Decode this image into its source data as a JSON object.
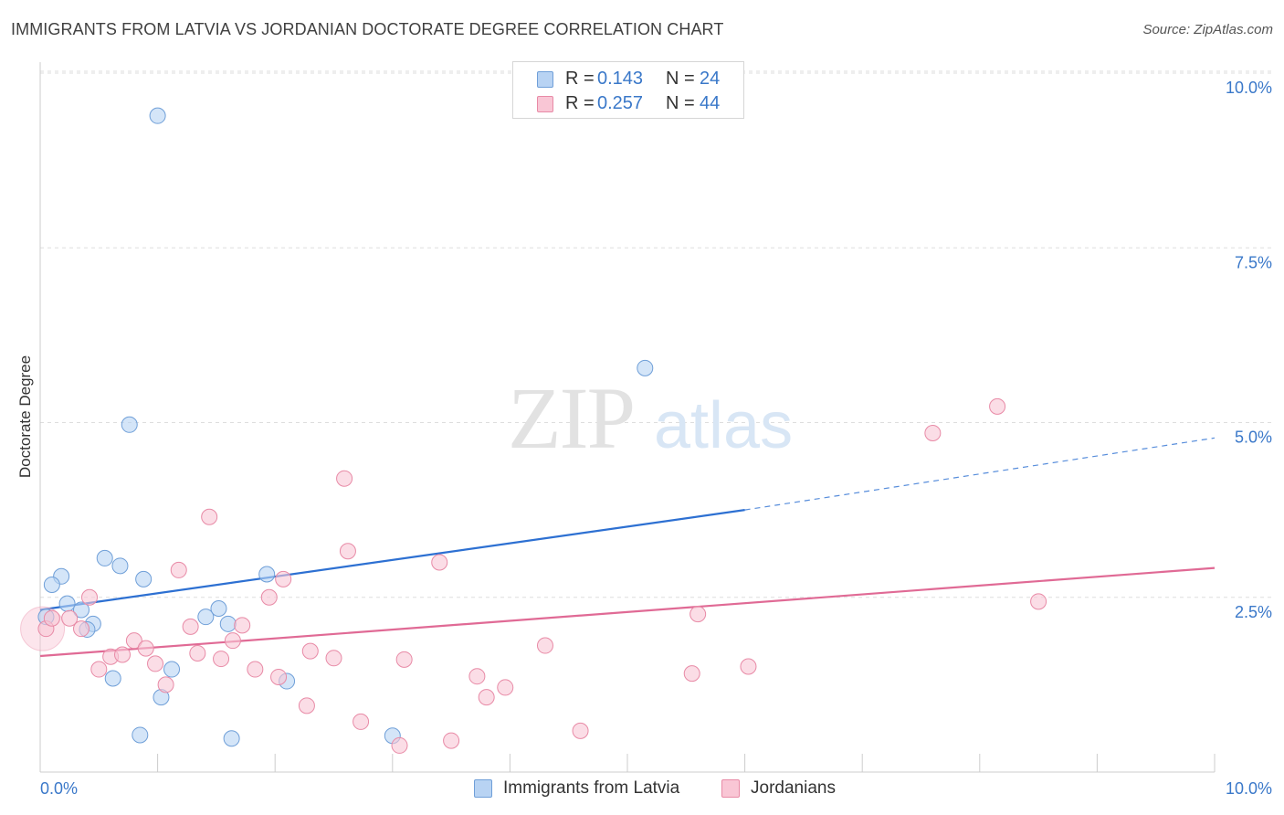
{
  "header": {
    "title": "IMMIGRANTS FROM LATVIA VS JORDANIAN DOCTORATE DEGREE CORRELATION CHART",
    "source": "Source: ZipAtlas.com"
  },
  "watermark": {
    "zip": "ZIP",
    "atlas": "atlas"
  },
  "legend": {
    "r_label": "R =",
    "n_label": "N =",
    "rows": [
      {
        "r": "0.143",
        "n": "24"
      },
      {
        "r": "0.257",
        "n": "44"
      }
    ]
  },
  "colors": {
    "blue_fill": "#b8d3f3",
    "blue_stroke": "#6f9fd8",
    "blue_line": "#2d70d2",
    "pink_fill": "#f9c6d5",
    "pink_stroke": "#e88aa6",
    "pink_line": "#e06a95",
    "axis_label": "#3a78c9",
    "grid": "#dddddd"
  },
  "chart_data": {
    "type": "scatter",
    "title": "IMMIGRANTS FROM LATVIA VS JORDANIAN DOCTORATE DEGREE CORRELATION CHART",
    "xlabel": "",
    "ylabel": "Doctorate Degree",
    "xlim": [
      0,
      10
    ],
    "ylim": [
      0,
      10
    ],
    "x_tick_labels": [
      "0.0%",
      "10.0%"
    ],
    "y_ticks": [
      2.5,
      5.0,
      7.5,
      10.0
    ],
    "y_tick_labels": [
      "2.5%",
      "5.0%",
      "7.5%",
      "10.0%"
    ],
    "grid": true,
    "legend_position": "top-center",
    "series": [
      {
        "name": "Immigrants from Latvia",
        "color": "blue",
        "R": 0.143,
        "N": 24,
        "points": [
          [
            1.0,
            9.39
          ],
          [
            0.76,
            4.97
          ],
          [
            5.15,
            5.78
          ],
          [
            0.18,
            2.8
          ],
          [
            0.1,
            2.68
          ],
          [
            0.55,
            3.06
          ],
          [
            0.68,
            2.95
          ],
          [
            0.88,
            2.76
          ],
          [
            1.93,
            2.83
          ],
          [
            0.23,
            2.41
          ],
          [
            0.35,
            2.32
          ],
          [
            0.45,
            2.12
          ],
          [
            0.4,
            2.04
          ],
          [
            1.41,
            2.22
          ],
          [
            1.6,
            2.12
          ],
          [
            1.52,
            2.34
          ],
          [
            0.05,
            2.22
          ],
          [
            0.62,
            1.34
          ],
          [
            1.12,
            1.47
          ],
          [
            1.03,
            1.07
          ],
          [
            2.1,
            1.3
          ],
          [
            0.85,
            0.53
          ],
          [
            1.63,
            0.48
          ],
          [
            3.0,
            0.52
          ]
        ],
        "trend": {
          "x0": 0.0,
          "y0": 2.32,
          "x1": 6.0,
          "y1": 3.75,
          "dashed_to_x": 10.0,
          "dashed_to_y": 4.78
        }
      },
      {
        "name": "Jordanians",
        "color": "pink",
        "R": 0.257,
        "N": 44,
        "points": [
          [
            0.05,
            2.05
          ],
          [
            0.1,
            2.2
          ],
          [
            0.25,
            2.2
          ],
          [
            0.42,
            2.5
          ],
          [
            0.35,
            2.05
          ],
          [
            0.5,
            1.47
          ],
          [
            0.6,
            1.65
          ],
          [
            0.7,
            1.68
          ],
          [
            0.8,
            1.88
          ],
          [
            0.9,
            1.77
          ],
          [
            0.98,
            1.55
          ],
          [
            1.07,
            1.25
          ],
          [
            1.18,
            2.89
          ],
          [
            1.28,
            2.08
          ],
          [
            1.34,
            1.7
          ],
          [
            1.44,
            3.65
          ],
          [
            1.54,
            1.62
          ],
          [
            1.64,
            1.88
          ],
          [
            1.72,
            2.1
          ],
          [
            1.83,
            1.47
          ],
          [
            1.95,
            2.5
          ],
          [
            2.03,
            1.36
          ],
          [
            2.07,
            2.76
          ],
          [
            2.27,
            0.95
          ],
          [
            2.3,
            1.73
          ],
          [
            2.5,
            1.63
          ],
          [
            2.59,
            4.2
          ],
          [
            2.62,
            3.16
          ],
          [
            2.73,
            0.72
          ],
          [
            3.06,
            0.38
          ],
          [
            3.1,
            1.61
          ],
          [
            3.4,
            3.0
          ],
          [
            3.5,
            0.45
          ],
          [
            3.72,
            1.37
          ],
          [
            3.8,
            1.07
          ],
          [
            3.96,
            1.21
          ],
          [
            4.3,
            1.81
          ],
          [
            4.6,
            0.59
          ],
          [
            5.55,
            1.41
          ],
          [
            5.6,
            2.26
          ],
          [
            6.03,
            1.51
          ],
          [
            7.6,
            4.85
          ],
          [
            8.15,
            5.23
          ],
          [
            8.5,
            2.44
          ]
        ],
        "trend": {
          "x0": 0.0,
          "y0": 1.66,
          "x1": 10.0,
          "y1": 2.92
        }
      }
    ]
  },
  "bottom_legend": [
    "Immigrants from Latvia",
    "Jordanians"
  ]
}
